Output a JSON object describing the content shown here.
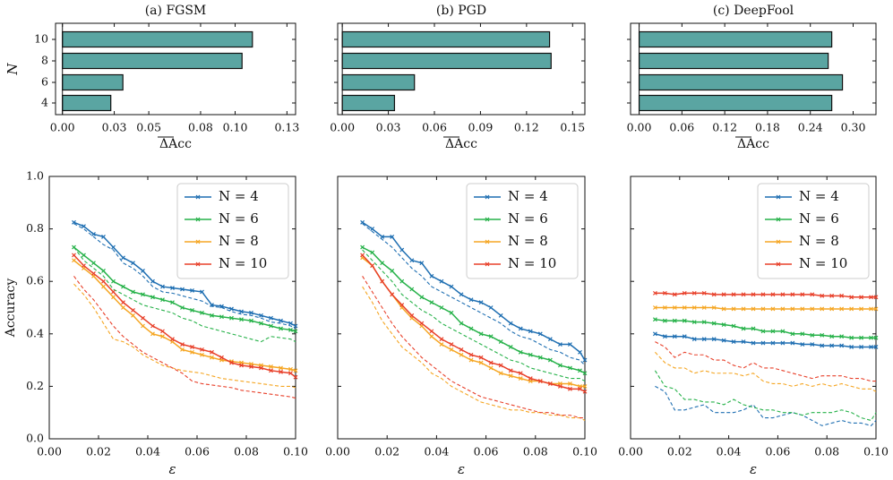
{
  "chart_data": [
    {
      "type": "bar",
      "orientation": "horizontal",
      "title": "(a) FGSM",
      "xlabel": "ΔAcc",
      "ylabel": "N",
      "categories": [
        "4",
        "6",
        "8",
        "10"
      ],
      "values": [
        0.028,
        0.035,
        0.104,
        0.11
      ],
      "xticks": [
        "0.00",
        "0.03",
        "0.05",
        "0.08",
        "0.10",
        "0.13"
      ],
      "xlim": [
        -0.004,
        0.135
      ],
      "bar_color": "#5aa5a2"
    },
    {
      "type": "bar",
      "orientation": "horizontal",
      "title": "(b) PGD",
      "xlabel": "ΔAcc",
      "categories": [
        "4",
        "6",
        "8",
        "10"
      ],
      "values": [
        0.034,
        0.047,
        0.136,
        0.135
      ],
      "xticks": [
        "0.00",
        "0.03",
        "0.06",
        "0.09",
        "0.12",
        "0.15"
      ],
      "xlim": [
        -0.003,
        0.158
      ],
      "bar_color": "#5aa5a2"
    },
    {
      "type": "bar",
      "orientation": "horizontal",
      "title": "(c) DeepFool",
      "xlabel": "ΔAcc",
      "categories": [
        "4",
        "6",
        "8",
        "10"
      ],
      "values": [
        0.27,
        0.285,
        0.265,
        0.27
      ],
      "xticks": [
        "0.00",
        "0.06",
        "0.12",
        "0.18",
        "0.24",
        "0.30"
      ],
      "xlim": [
        -0.012,
        0.332
      ],
      "bar_color": "#5aa5a2"
    },
    {
      "type": "line",
      "xlabel": "ε",
      "ylabel": "Accuracy",
      "xlim": [
        0.0,
        0.1
      ],
      "ylim": [
        0.0,
        1.0
      ],
      "xticks": [
        "0.00",
        "0.02",
        "0.04",
        "0.06",
        "0.08",
        "0.10"
      ],
      "yticks": [
        "0.0",
        "0.2",
        "0.4",
        "0.6",
        "0.8",
        "1.0"
      ],
      "legend": "top-right",
      "x": [
        0.01,
        0.014,
        0.018,
        0.022,
        0.026,
        0.03,
        0.034,
        0.038,
        0.042,
        0.046,
        0.05,
        0.054,
        0.058,
        0.062,
        0.066,
        0.07,
        0.074,
        0.078,
        0.082,
        0.086,
        0.09,
        0.094,
        0.098,
        0.1
      ],
      "series": [
        {
          "name": "N = 4",
          "color": "#1f6fb2",
          "values": [
            0.825,
            0.81,
            0.78,
            0.77,
            0.73,
            0.69,
            0.67,
            0.64,
            0.6,
            0.58,
            0.575,
            0.57,
            0.565,
            0.56,
            0.51,
            0.505,
            0.495,
            0.485,
            0.48,
            0.47,
            0.46,
            0.45,
            0.44,
            0.43
          ],
          "dashed": [
            0.82,
            0.8,
            0.77,
            0.74,
            0.72,
            0.67,
            0.65,
            0.62,
            0.58,
            0.56,
            0.555,
            0.545,
            0.535,
            0.525,
            0.505,
            0.5,
            0.485,
            0.475,
            0.47,
            0.46,
            0.445,
            0.44,
            0.43,
            0.42
          ]
        },
        {
          "name": "N = 6",
          "color": "#27b24a",
          "values": [
            0.73,
            0.7,
            0.67,
            0.64,
            0.6,
            0.58,
            0.56,
            0.55,
            0.54,
            0.53,
            0.52,
            0.5,
            0.49,
            0.48,
            0.47,
            0.465,
            0.46,
            0.455,
            0.45,
            0.44,
            0.43,
            0.42,
            0.415,
            0.41
          ],
          "dashed": [
            0.73,
            0.68,
            0.65,
            0.62,
            0.57,
            0.55,
            0.53,
            0.51,
            0.5,
            0.49,
            0.48,
            0.46,
            0.45,
            0.43,
            0.42,
            0.41,
            0.4,
            0.39,
            0.38,
            0.37,
            0.39,
            0.385,
            0.38,
            0.37
          ]
        },
        {
          "name": "N = 8",
          "color": "#f5a623",
          "values": [
            0.68,
            0.65,
            0.62,
            0.58,
            0.54,
            0.5,
            0.47,
            0.43,
            0.4,
            0.39,
            0.37,
            0.34,
            0.33,
            0.32,
            0.31,
            0.3,
            0.295,
            0.29,
            0.285,
            0.28,
            0.275,
            0.27,
            0.265,
            0.26
          ],
          "dashed": [
            0.59,
            0.55,
            0.5,
            0.44,
            0.38,
            0.37,
            0.35,
            0.32,
            0.3,
            0.28,
            0.27,
            0.26,
            0.255,
            0.25,
            0.24,
            0.23,
            0.225,
            0.22,
            0.215,
            0.21,
            0.205,
            0.2,
            0.2,
            0.195
          ]
        },
        {
          "name": "N = 10",
          "color": "#e8402a",
          "values": [
            0.7,
            0.66,
            0.63,
            0.6,
            0.56,
            0.52,
            0.49,
            0.46,
            0.43,
            0.41,
            0.38,
            0.36,
            0.35,
            0.34,
            0.33,
            0.31,
            0.29,
            0.28,
            0.275,
            0.27,
            0.26,
            0.255,
            0.25,
            0.235
          ],
          "dashed": [
            0.62,
            0.57,
            0.53,
            0.48,
            0.43,
            0.39,
            0.36,
            0.33,
            0.31,
            0.29,
            0.27,
            0.25,
            0.22,
            0.21,
            0.205,
            0.2,
            0.195,
            0.185,
            0.18,
            0.175,
            0.17,
            0.165,
            0.16,
            0.155
          ]
        }
      ]
    },
    {
      "type": "line",
      "xlabel": "ε",
      "xlim": [
        0.0,
        0.1
      ],
      "ylim": [
        0.0,
        1.0
      ],
      "xticks": [
        "0.00",
        "0.02",
        "0.04",
        "0.06",
        "0.08",
        "0.10"
      ],
      "legend": "top-right",
      "x": [
        0.01,
        0.014,
        0.018,
        0.022,
        0.026,
        0.03,
        0.034,
        0.038,
        0.042,
        0.046,
        0.05,
        0.054,
        0.058,
        0.062,
        0.066,
        0.07,
        0.074,
        0.078,
        0.082,
        0.086,
        0.09,
        0.094,
        0.098,
        0.1
      ],
      "series": [
        {
          "name": "N = 4",
          "color": "#1f6fb2",
          "values": [
            0.825,
            0.8,
            0.77,
            0.77,
            0.72,
            0.68,
            0.67,
            0.62,
            0.6,
            0.58,
            0.55,
            0.53,
            0.52,
            0.5,
            0.47,
            0.44,
            0.42,
            0.41,
            0.4,
            0.38,
            0.36,
            0.36,
            0.33,
            0.3
          ],
          "dashed": [
            0.82,
            0.79,
            0.76,
            0.73,
            0.69,
            0.65,
            0.62,
            0.58,
            0.56,
            0.54,
            0.52,
            0.5,
            0.48,
            0.46,
            0.44,
            0.41,
            0.39,
            0.38,
            0.36,
            0.34,
            0.33,
            0.31,
            0.3,
            0.28
          ]
        },
        {
          "name": "N = 6",
          "color": "#27b24a",
          "values": [
            0.73,
            0.71,
            0.67,
            0.64,
            0.6,
            0.57,
            0.54,
            0.52,
            0.5,
            0.48,
            0.44,
            0.42,
            0.4,
            0.39,
            0.37,
            0.35,
            0.33,
            0.32,
            0.31,
            0.3,
            0.28,
            0.27,
            0.26,
            0.25
          ],
          "dashed": [
            0.72,
            0.68,
            0.64,
            0.6,
            0.55,
            0.52,
            0.49,
            0.47,
            0.44,
            0.42,
            0.4,
            0.38,
            0.36,
            0.34,
            0.32,
            0.3,
            0.29,
            0.27,
            0.26,
            0.25,
            0.24,
            0.23,
            0.23,
            0.22
          ]
        },
        {
          "name": "N = 8",
          "color": "#f5a623",
          "values": [
            0.69,
            0.66,
            0.6,
            0.55,
            0.5,
            0.46,
            0.43,
            0.39,
            0.36,
            0.34,
            0.32,
            0.3,
            0.29,
            0.27,
            0.25,
            0.24,
            0.23,
            0.22,
            0.22,
            0.21,
            0.21,
            0.21,
            0.2,
            0.2
          ],
          "dashed": [
            0.58,
            0.52,
            0.45,
            0.4,
            0.35,
            0.32,
            0.29,
            0.25,
            0.23,
            0.2,
            0.18,
            0.16,
            0.14,
            0.13,
            0.12,
            0.11,
            0.11,
            0.1,
            0.1,
            0.09,
            0.09,
            0.08,
            0.08,
            0.07
          ]
        },
        {
          "name": "N = 10",
          "color": "#e8402a",
          "values": [
            0.7,
            0.66,
            0.6,
            0.55,
            0.51,
            0.47,
            0.44,
            0.41,
            0.38,
            0.36,
            0.34,
            0.32,
            0.31,
            0.29,
            0.28,
            0.26,
            0.25,
            0.23,
            0.22,
            0.21,
            0.2,
            0.19,
            0.19,
            0.18
          ],
          "dashed": [
            0.62,
            0.56,
            0.5,
            0.44,
            0.39,
            0.35,
            0.31,
            0.28,
            0.25,
            0.22,
            0.2,
            0.18,
            0.16,
            0.15,
            0.14,
            0.13,
            0.12,
            0.11,
            0.1,
            0.1,
            0.09,
            0.09,
            0.08,
            0.08
          ]
        }
      ]
    },
    {
      "type": "line",
      "xlabel": "ε",
      "xlim": [
        0.0,
        0.1
      ],
      "ylim": [
        0.0,
        1.0
      ],
      "xticks": [
        "0.00",
        "0.02",
        "0.04",
        "0.06",
        "0.08",
        "0.10"
      ],
      "legend": "top-right",
      "x": [
        0.01,
        0.014,
        0.018,
        0.022,
        0.026,
        0.03,
        0.034,
        0.038,
        0.042,
        0.046,
        0.05,
        0.054,
        0.058,
        0.062,
        0.066,
        0.07,
        0.074,
        0.078,
        0.082,
        0.086,
        0.09,
        0.094,
        0.098,
        0.1
      ],
      "series": [
        {
          "name": "N = 4",
          "color": "#1f6fb2",
          "values": [
            0.4,
            0.39,
            0.39,
            0.39,
            0.38,
            0.38,
            0.38,
            0.375,
            0.37,
            0.37,
            0.365,
            0.365,
            0.365,
            0.365,
            0.365,
            0.36,
            0.36,
            0.355,
            0.355,
            0.355,
            0.35,
            0.35,
            0.35,
            0.35
          ],
          "dashed": [
            0.2,
            0.18,
            0.11,
            0.11,
            0.12,
            0.13,
            0.1,
            0.1,
            0.1,
            0.11,
            0.13,
            0.08,
            0.08,
            0.09,
            0.1,
            0.09,
            0.07,
            0.05,
            0.06,
            0.07,
            0.06,
            0.06,
            0.05,
            0.07
          ]
        },
        {
          "name": "N = 6",
          "color": "#27b24a",
          "values": [
            0.455,
            0.45,
            0.45,
            0.45,
            0.445,
            0.445,
            0.44,
            0.435,
            0.43,
            0.42,
            0.42,
            0.41,
            0.41,
            0.41,
            0.4,
            0.4,
            0.395,
            0.395,
            0.39,
            0.39,
            0.385,
            0.385,
            0.385,
            0.385
          ],
          "dashed": [
            0.26,
            0.2,
            0.19,
            0.15,
            0.15,
            0.14,
            0.14,
            0.13,
            0.15,
            0.13,
            0.12,
            0.11,
            0.11,
            0.1,
            0.1,
            0.09,
            0.1,
            0.1,
            0.1,
            0.11,
            0.1,
            0.08,
            0.07,
            0.1
          ]
        },
        {
          "name": "N = 8",
          "color": "#f5a623",
          "values": [
            0.5,
            0.5,
            0.5,
            0.5,
            0.5,
            0.5,
            0.5,
            0.495,
            0.495,
            0.495,
            0.495,
            0.495,
            0.495,
            0.495,
            0.495,
            0.495,
            0.495,
            0.495,
            0.495,
            0.495,
            0.495,
            0.495,
            0.495,
            0.495
          ],
          "dashed": [
            0.33,
            0.29,
            0.27,
            0.27,
            0.25,
            0.26,
            0.25,
            0.25,
            0.25,
            0.24,
            0.25,
            0.22,
            0.21,
            0.21,
            0.2,
            0.21,
            0.2,
            0.21,
            0.2,
            0.21,
            0.2,
            0.19,
            0.19,
            0.18
          ]
        },
        {
          "name": "N = 10",
          "color": "#e8402a",
          "values": [
            0.555,
            0.555,
            0.55,
            0.555,
            0.555,
            0.555,
            0.55,
            0.55,
            0.55,
            0.55,
            0.55,
            0.55,
            0.55,
            0.55,
            0.55,
            0.55,
            0.55,
            0.545,
            0.545,
            0.545,
            0.54,
            0.54,
            0.54,
            0.54
          ],
          "dashed": [
            0.37,
            0.35,
            0.31,
            0.33,
            0.32,
            0.32,
            0.3,
            0.3,
            0.28,
            0.27,
            0.29,
            0.27,
            0.27,
            0.26,
            0.25,
            0.24,
            0.23,
            0.24,
            0.24,
            0.24,
            0.23,
            0.23,
            0.22,
            0.22
          ]
        }
      ]
    }
  ]
}
